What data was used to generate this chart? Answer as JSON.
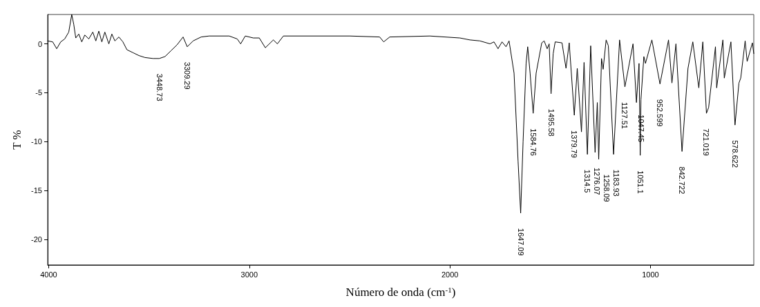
{
  "chart_data": {
    "type": "line",
    "xlabel": "Número de onda (cm$^{-1}$)",
    "ylabel": "T %",
    "xlim": [
      4005,
      485
    ],
    "xticks": [
      4000,
      3000,
      2000,
      1000
    ],
    "ylim": [
      -22.6,
      3
    ],
    "yticks": [
      0,
      -5,
      -10,
      -15,
      -20
    ],
    "grid": false,
    "marker": "none",
    "line_style": "solid",
    "series": [
      {
        "color": "#000000",
        "x": [
          4005,
          3980,
          3960,
          3940,
          3920,
          3900,
          3885,
          3875,
          3865,
          3850,
          3835,
          3820,
          3800,
          3780,
          3765,
          3750,
          3735,
          3720,
          3700,
          3685,
          3670,
          3650,
          3630,
          3610,
          3580,
          3550,
          3520,
          3480,
          3448.73,
          3420,
          3390,
          3360,
          3330,
          3309.29,
          3280,
          3240,
          3200,
          3100,
          3060,
          3043,
          3020,
          2980,
          2950,
          2920,
          2880,
          2860,
          2830,
          2500,
          2350,
          2330,
          2300,
          2100,
          1950,
          1900,
          1850,
          1800,
          1780,
          1760,
          1740,
          1720,
          1705,
          1680,
          1660,
          1647.09,
          1635,
          1620,
          1612,
          1600,
          1584.76,
          1570,
          1542,
          1530,
          1515,
          1505,
          1495.58,
          1485,
          1475,
          1441,
          1421,
          1405,
          1379.79,
          1365,
          1344,
          1331,
          1314.5,
          1298,
          1276.07,
          1265,
          1258.09,
          1244,
          1236,
          1221,
          1210,
          1183.93,
          1154,
          1127.51,
          1087,
          1070,
          1057,
          1051.1,
          1047.45,
          1033,
          1025,
          993,
          952.599,
          910,
          893,
          873,
          842.722,
          813,
          789,
          759,
          739,
          721.019,
          710,
          676,
          670,
          639,
          632,
          599,
          578.622,
          559,
          550,
          528,
          518,
          492,
          485
        ],
        "values": [
          0.3,
          0.2,
          -0.5,
          0.2,
          0.5,
          1.2,
          3.0,
          2.0,
          0.6,
          1.0,
          0.2,
          0.9,
          0.5,
          1.2,
          0.3,
          1.3,
          0.2,
          1.2,
          0.0,
          1.0,
          0.3,
          0.7,
          0.2,
          -0.6,
          -0.9,
          -1.2,
          -1.4,
          -1.5,
          -1.5,
          -1.3,
          -0.7,
          -0.1,
          0.7,
          -0.3,
          0.3,
          0.7,
          0.8,
          0.8,
          0.5,
          0.0,
          0.8,
          0.6,
          0.6,
          -0.4,
          0.4,
          0.0,
          0.8,
          0.8,
          0.7,
          0.2,
          0.7,
          0.8,
          0.6,
          0.4,
          0.3,
          0.0,
          0.2,
          -0.5,
          0.2,
          -0.3,
          0.3,
          -3,
          -12,
          -17.3,
          -10,
          -2,
          -0.3,
          -3,
          -7.1,
          -3,
          0.1,
          0.3,
          -0.5,
          0.0,
          -5.1,
          -1,
          0.2,
          0.1,
          -2.5,
          0.1,
          -7.3,
          -2.5,
          -9,
          -1.9,
          -11.3,
          -0.2,
          -11.1,
          -6,
          -11.8,
          -1.5,
          -2.6,
          0.4,
          -0.2,
          -11.3,
          0.4,
          -4.4,
          0.0,
          -6,
          -2,
          -11.4,
          -5.7,
          -1.3,
          -2,
          0.4,
          -4.1,
          0.4,
          -4,
          0.0,
          -11.0,
          -2.5,
          0.2,
          -4.5,
          0.2,
          -7.1,
          -6.5,
          -0.3,
          -4.5,
          0.4,
          -3.5,
          0.2,
          -8.3,
          -4,
          -3.5,
          0.3,
          -1.8,
          0.1,
          -1.0
        ]
      }
    ],
    "annotations": [
      {
        "text": "3448.73",
        "x": 3448.73,
        "y": -1.5
      },
      {
        "text": "3309.29",
        "x": 3309.29,
        "y": -0.3
      },
      {
        "text": "1647.09",
        "x": 1647.09,
        "y": -17.3
      },
      {
        "text": "1584.76",
        "x": 1584.76,
        "y": -7.1
      },
      {
        "text": "1495.58",
        "x": 1495.58,
        "y": -5.1
      },
      {
        "text": "1379.79",
        "x": 1379.79,
        "y": -7.3
      },
      {
        "text": "1314.5",
        "x": 1314.5,
        "y": -11.3
      },
      {
        "text": "1276.07",
        "x": 1276.07,
        "y": -11.1
      },
      {
        "text": "1258.09",
        "x": 1258.09,
        "y": -11.8
      },
      {
        "text": "1183.93",
        "x": 1183.93,
        "y": -11.3
      },
      {
        "text": "1127.51",
        "x": 1127.51,
        "y": -4.4
      },
      {
        "text": "1051.1",
        "x": 1051.1,
        "y": -11.4
      },
      {
        "text": "1047.45",
        "x": 1047.45,
        "y": -5.7
      },
      {
        "text": "952.599",
        "x": 952.599,
        "y": -4.1
      },
      {
        "text": "842.722",
        "x": 842.722,
        "y": -11.0
      },
      {
        "text": "721.019",
        "x": 721.019,
        "y": -7.1
      },
      {
        "text": "578.622",
        "x": 578.622,
        "y": -8.3
      }
    ]
  }
}
